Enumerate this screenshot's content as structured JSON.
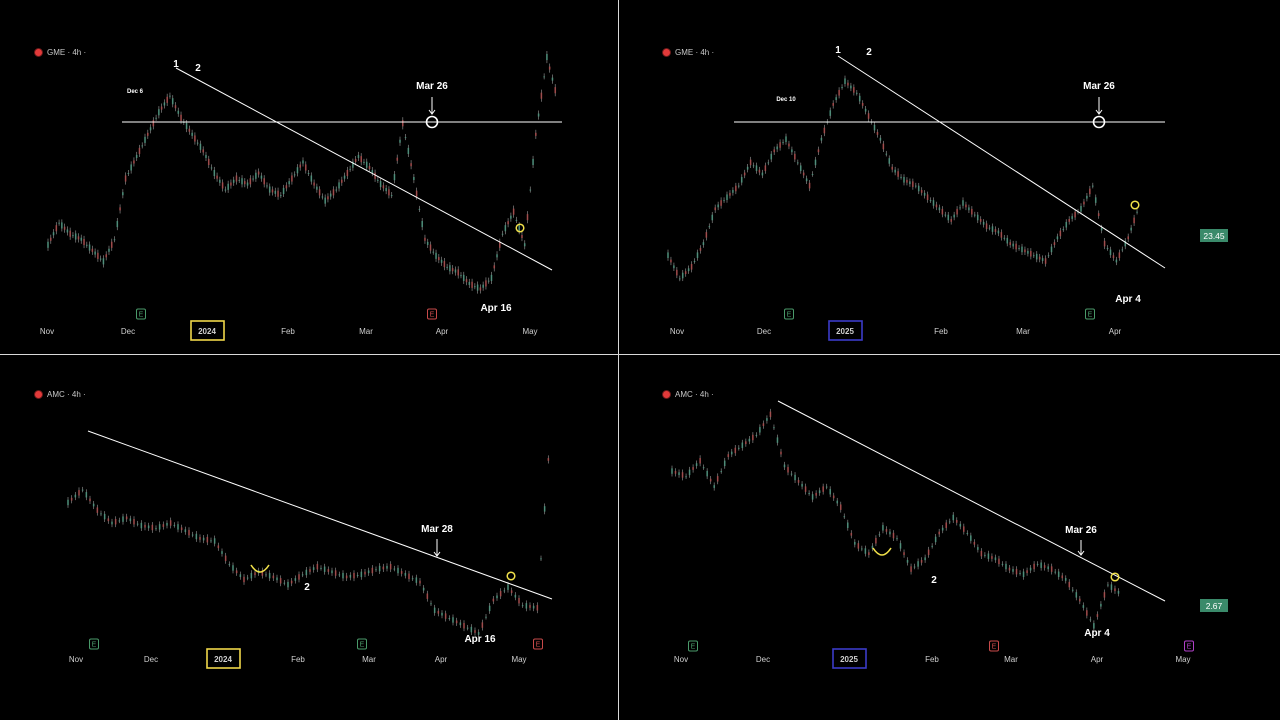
{
  "colors": {
    "background": "#000000",
    "candle": "#a0a0a0",
    "trendline": "#ffffff",
    "yellow_marker": "#f0e04a",
    "box_2024": "#f0d84a",
    "box_2025": "#3b3bc8",
    "price_badge": "#3a8a6a",
    "earnings_green": "#4a9a6a",
    "earnings_red": "#c84a4a",
    "earnings_purple": "#b040c8"
  },
  "chart_data": [
    {
      "type": "line",
      "symbol": "GME",
      "interval": "4h",
      "legend": "GME · 4h ·",
      "year_box": "2024",
      "x_ticks": [
        "Nov",
        "Dec",
        "2024",
        "Feb",
        "Mar",
        "Apr",
        "May"
      ],
      "price_series": [
        18,
        22,
        20,
        19,
        17,
        15,
        19,
        30,
        34,
        38,
        42,
        45,
        41,
        38,
        35,
        31,
        28,
        30,
        29,
        31,
        28,
        27,
        30,
        33,
        29,
        26,
        28,
        31,
        34,
        32,
        29,
        27,
        40,
        30,
        19,
        16,
        14,
        13,
        11,
        10,
        12,
        20,
        24,
        18,
        38,
        52,
        44
      ],
      "annotations": [
        "1",
        "2",
        "Dec 6",
        "Mar 26",
        "Apr 16"
      ],
      "earnings": [
        "E",
        "E"
      ]
    },
    {
      "type": "line",
      "symbol": "GME",
      "interval": "4h",
      "legend": "GME · 4h ·",
      "year_box": "2025",
      "price_label": "23.45",
      "x_ticks": [
        "Nov",
        "Dec",
        "2025",
        "Feb",
        "Mar",
        "Apr"
      ],
      "price_series": [
        18,
        14,
        16,
        20,
        26,
        28,
        30,
        34,
        32,
        36,
        38,
        34,
        30,
        38,
        44,
        48,
        46,
        42,
        38,
        33,
        31,
        30,
        28,
        26,
        24,
        27,
        25,
        23,
        22,
        20,
        19,
        18,
        17,
        21,
        24,
        26,
        30,
        20,
        17,
        21,
        27
      ],
      "annotations": [
        "1",
        "2",
        "Dec 10",
        "Mar 26",
        "Apr 4"
      ],
      "earnings": [
        "E",
        "E"
      ]
    },
    {
      "type": "line",
      "symbol": "AMC",
      "interval": "4h",
      "legend": "AMC · 4h ·",
      "year_box": "2024",
      "x_ticks": [
        "Nov",
        "Dec",
        "2024",
        "Feb",
        "Mar",
        "Apr",
        "May"
      ],
      "price_series": [
        8.4,
        8.9,
        8.1,
        7.6,
        7.8,
        7.5,
        7.4,
        7.6,
        7.3,
        7.0,
        6.9,
        6.0,
        5.4,
        5.7,
        5.5,
        5.2,
        5.6,
        5.9,
        5.7,
        5.5,
        5.6,
        5.8,
        5.9,
        5.6,
        5.3,
        4.2,
        3.9,
        3.6,
        3.3,
        4.6,
        5.1,
        4.4,
        4.3,
        12.0
      ],
      "annotations": [
        "2",
        "Mar 28",
        "Apr 16"
      ],
      "earnings": [
        "E",
        "E",
        "E"
      ]
    },
    {
      "type": "line",
      "symbol": "AMC",
      "interval": "4h",
      "legend": "AMC · 4h ·",
      "year_box": "2025",
      "price_label": "2.67",
      "x_ticks": [
        "Nov",
        "Dec",
        "2025",
        "Feb",
        "Mar",
        "Apr",
        "May"
      ],
      "price_series": [
        5.1,
        5.0,
        5.3,
        4.8,
        5.4,
        5.6,
        5.8,
        6.2,
        5.2,
        4.9,
        4.6,
        4.8,
        4.4,
        3.7,
        3.5,
        4.0,
        3.8,
        3.2,
        3.4,
        3.9,
        4.2,
        3.9,
        3.5,
        3.4,
        3.2,
        3.1,
        3.3,
        3.2,
        3.0,
        2.6,
        2.1,
        2.9,
        2.7
      ],
      "annotations": [
        "2",
        "Mar 26",
        "Apr 4"
      ],
      "earnings": [
        "E",
        "E",
        "E"
      ]
    }
  ]
}
